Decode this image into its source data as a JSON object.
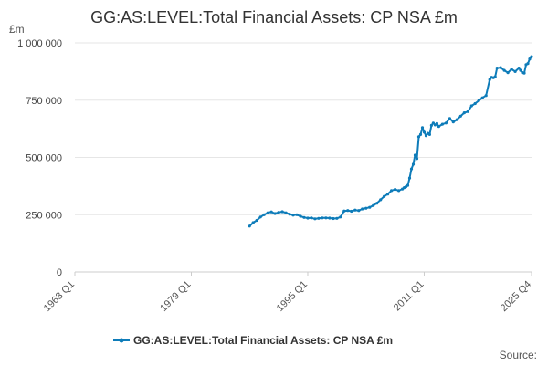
{
  "chart_data": {
    "type": "line",
    "title": "GG:AS:LEVEL:Total Financial Assets: CP NSA £m",
    "ylabel": "£m",
    "ylim": [
      0,
      1000000
    ],
    "yticks": [
      0,
      250000,
      500000,
      750000,
      1000000
    ],
    "ytick_labels": [
      "0",
      "250 000",
      "500 000",
      "750 000",
      "1 000 000"
    ],
    "xlim": [
      1963,
      2025.75
    ],
    "xticks": [
      1963,
      1979,
      1995,
      2011,
      2025.75
    ],
    "xtick_labels": [
      "1963 Q1",
      "1979 Q1",
      "1995 Q1",
      "2011 Q1",
      "2025 Q4"
    ],
    "grid": true,
    "legend": "bottom-center",
    "color": "#0e7cb9",
    "series": [
      {
        "name": "GG:AS:LEVEL:Total Financial Assets: CP NSA £m",
        "x": [
          1987.0,
          1987.5,
          1988.0,
          1988.5,
          1989.0,
          1989.5,
          1990.0,
          1990.5,
          1991.0,
          1991.5,
          1992.0,
          1992.5,
          1993.0,
          1993.5,
          1994.0,
          1994.5,
          1995.0,
          1995.5,
          1996.0,
          1996.5,
          1997.0,
          1997.5,
          1998.0,
          1998.5,
          1999.0,
          1999.5,
          2000.0,
          2000.5,
          2001.0,
          2001.5,
          2002.0,
          2002.5,
          2003.0,
          2003.5,
          2004.0,
          2004.5,
          2005.0,
          2005.5,
          2006.0,
          2006.5,
          2007.0,
          2007.5,
          2008.0,
          2008.25,
          2008.5,
          2008.75,
          2009.0,
          2009.25,
          2009.5,
          2009.75,
          2010.0,
          2010.25,
          2010.5,
          2010.75,
          2011.0,
          2011.25,
          2011.5,
          2011.75,
          2012.0,
          2012.25,
          2012.5,
          2012.75,
          2013.0,
          2013.5,
          2014.0,
          2014.5,
          2015.0,
          2015.5,
          2016.0,
          2016.5,
          2017.0,
          2017.5,
          2018.0,
          2018.5,
          2019.0,
          2019.5,
          2020.0,
          2020.25,
          2020.5,
          2020.75,
          2021.0,
          2021.5,
          2022.0,
          2022.5,
          2023.0,
          2023.5,
          2024.0,
          2024.25,
          2024.5,
          2024.75,
          2025.0,
          2025.25,
          2025.5,
          2025.75
        ],
        "values": [
          200000,
          215000,
          225000,
          240000,
          250000,
          258000,
          262000,
          255000,
          260000,
          263000,
          258000,
          252000,
          248000,
          250000,
          243000,
          238000,
          235000,
          236000,
          232000,
          234000,
          236000,
          236000,
          235000,
          233000,
          234000,
          240000,
          266000,
          268000,
          265000,
          270000,
          268000,
          275000,
          278000,
          282000,
          290000,
          300000,
          315000,
          330000,
          340000,
          355000,
          360000,
          355000,
          362000,
          368000,
          372000,
          378000,
          410000,
          450000,
          470000,
          510000,
          495000,
          590000,
          600000,
          630000,
          610000,
          595000,
          605000,
          600000,
          640000,
          650000,
          642000,
          648000,
          635000,
          645000,
          650000,
          670000,
          655000,
          665000,
          680000,
          695000,
          700000,
          725000,
          735000,
          748000,
          760000,
          770000,
          840000,
          850000,
          848000,
          852000,
          890000,
          892000,
          880000,
          870000,
          885000,
          875000,
          890000,
          880000,
          870000,
          868000,
          905000,
          910000,
          930000,
          940000
        ]
      }
    ]
  },
  "source_label": "Source:"
}
